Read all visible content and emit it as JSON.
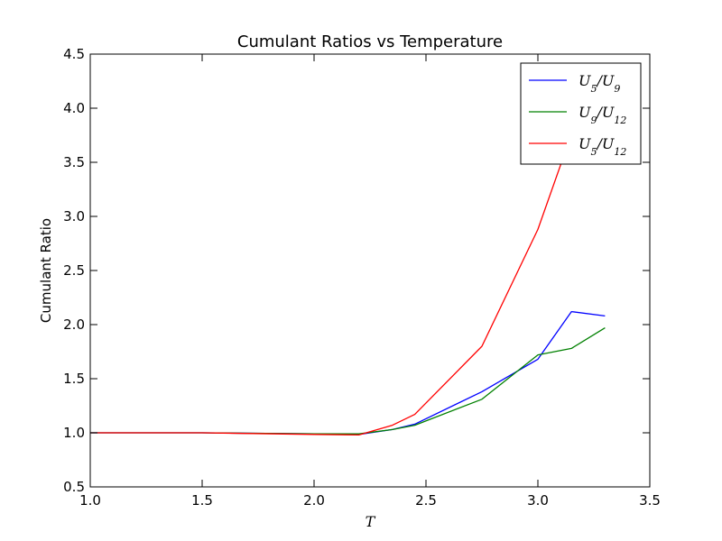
{
  "chart_data": {
    "type": "line",
    "title": "Cumulant Ratios vs Temperature",
    "xlabel": "T",
    "ylabel": "Cumulant Ratio",
    "xlim": [
      1.0,
      3.5
    ],
    "ylim": [
      0.5,
      4.5
    ],
    "xticks": [
      "1.0",
      "1.5",
      "2.0",
      "2.5",
      "3.0",
      "3.5"
    ],
    "yticks": [
      "0.5",
      "1.0",
      "1.5",
      "2.0",
      "2.5",
      "3.0",
      "3.5",
      "4.0",
      "4.5"
    ],
    "grid": false,
    "legend_position": "top-right",
    "series": [
      {
        "name": "U5/U9",
        "color": "#0000ff",
        "x": [
          1.0,
          1.5,
          2.0,
          2.2,
          2.35,
          2.45,
          2.75,
          3.0,
          3.15,
          3.3
        ],
        "y": [
          1.0,
          1.0,
          0.99,
          0.985,
          1.03,
          1.08,
          1.38,
          1.68,
          2.12,
          2.08
        ]
      },
      {
        "name": "U9/U12",
        "color": "#008000",
        "x": [
          1.0,
          1.5,
          2.0,
          2.2,
          2.35,
          2.45,
          2.75,
          3.0,
          3.15,
          3.3
        ],
        "y": [
          1.0,
          1.0,
          0.99,
          0.99,
          1.03,
          1.07,
          1.31,
          1.72,
          1.78,
          1.97
        ]
      },
      {
        "name": "U5/U12",
        "color": "#ff0000",
        "x": [
          1.0,
          1.5,
          2.0,
          2.2,
          2.35,
          2.45,
          2.75,
          3.0,
          3.15,
          3.3
        ],
        "y": [
          1.0,
          1.0,
          0.985,
          0.98,
          1.07,
          1.17,
          1.8,
          2.88,
          3.76,
          4.1
        ]
      }
    ]
  }
}
